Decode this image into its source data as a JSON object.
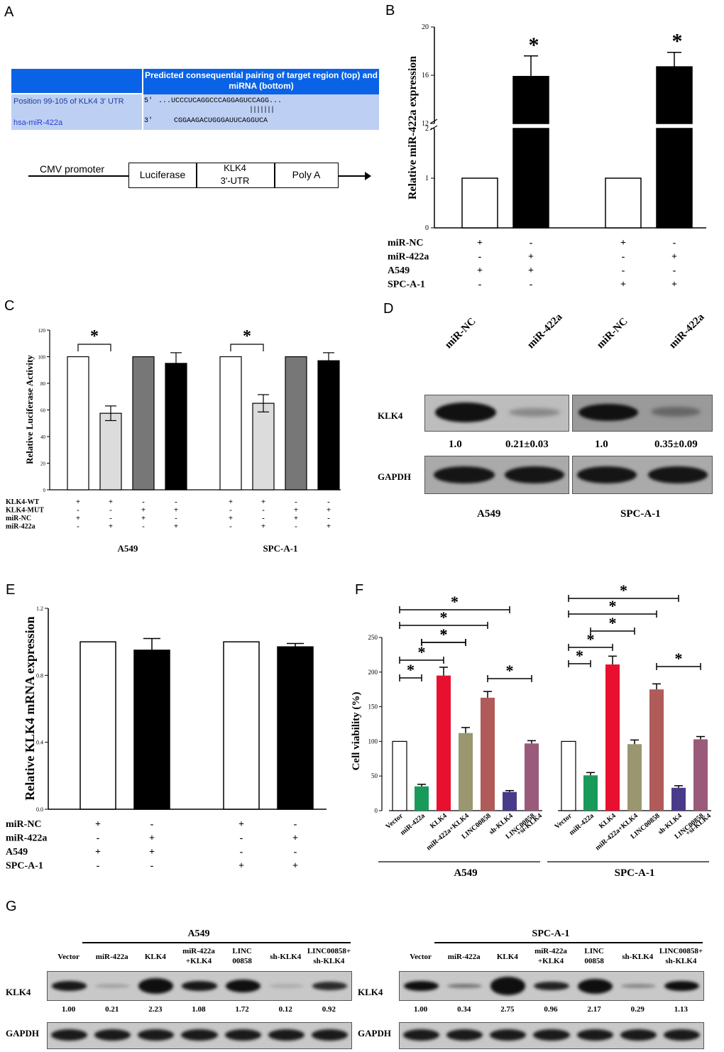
{
  "panels": {
    "A": "A",
    "B": "B",
    "C": "C",
    "D": "D",
    "E": "E",
    "F": "F",
    "G": "G"
  },
  "panelA": {
    "table_header": "Predicted consequential pairing of target region (top) and miRNA (bottom)",
    "row1_label": "Position 99-105 of KLK4 3' UTR",
    "row1_prime": "5'",
    "row1_seq": "...UCCCUCAGGCCCAGGAGUCCAGG...",
    "pairing": "|||||||",
    "row2_label": "hsa-miR-422a",
    "row2_prime": "3'",
    "row2_seq": "CGGAAGACUGGGAUUCAGGUCA",
    "construct": {
      "promoter": "CMV promoter",
      "luciferase": "Luciferase",
      "utr_line1": "KLK4",
      "utr_line2": "3'-UTR",
      "polya": "Poly A"
    }
  },
  "chart_data": [
    {
      "panel": "B",
      "type": "bar",
      "ylabel": "Relative miR-422a expression",
      "axis_break": true,
      "lower_ticks": [
        "0",
        "1",
        "2"
      ],
      "upper_ticks": [
        "12",
        "16",
        "20"
      ],
      "values": [
        1,
        15.9,
        1,
        16.7
      ],
      "errors": [
        0,
        1.7,
        0,
        1.2
      ],
      "colors": [
        "#ffffff",
        "#000000",
        "#ffffff",
        "#000000"
      ],
      "significance": [
        "",
        "*",
        "",
        "*"
      ],
      "rows": [
        {
          "label": "miR-NC",
          "marks": [
            "+",
            "-",
            "+",
            "-"
          ]
        },
        {
          "label": "miR-422a",
          "marks": [
            "-",
            "+",
            "-",
            "+"
          ]
        },
        {
          "label": "A549",
          "marks": [
            "+",
            "+",
            "-",
            "-"
          ]
        },
        {
          "label": "SPC-A-1",
          "marks": [
            "-",
            "-",
            "+",
            "+"
          ]
        }
      ]
    },
    {
      "panel": "C",
      "type": "bar",
      "ylabel": "Relative Luciferase Activity",
      "ylim": [
        0,
        120
      ],
      "ticks": [
        "0",
        "20",
        "40",
        "60",
        "80",
        "100",
        "120"
      ],
      "values": [
        100,
        57.5,
        100,
        95,
        100,
        65,
        100,
        97
      ],
      "errors": [
        0,
        5.5,
        0,
        8,
        0,
        6.5,
        0,
        6
      ],
      "colors": [
        "#ffffff",
        "#dcdcdc",
        "#777777",
        "#000000",
        "#ffffff",
        "#dcdcdc",
        "#777777",
        "#000000"
      ],
      "significance_label": "*",
      "rows": [
        {
          "label": "KLK4-WT",
          "marks": [
            "+",
            "+",
            "-",
            "-",
            "+",
            "+",
            "-",
            "-"
          ]
        },
        {
          "label": "KLK4-MUT",
          "marks": [
            "-",
            "-",
            "+",
            "+",
            "-",
            "-",
            "+",
            "+"
          ]
        },
        {
          "label": "miR-NC",
          "marks": [
            "+",
            "-",
            "+",
            "-",
            "+",
            "-",
            "+",
            "-"
          ]
        },
        {
          "label": "miR-422a",
          "marks": [
            "-",
            "+",
            "-",
            "+",
            "-",
            "+",
            "-",
            "+"
          ]
        }
      ],
      "groups": [
        "A549",
        "SPC-A-1"
      ]
    },
    {
      "panel": "E",
      "type": "bar",
      "ylabel": "Relative KLK4 mRNA expression",
      "ylim": [
        0,
        1.2
      ],
      "ticks": [
        "0.0",
        "0.4",
        "0.8",
        "1.2"
      ],
      "values": [
        1,
        0.95,
        1,
        0.97
      ],
      "errors": [
        0,
        0.07,
        0,
        0.02
      ],
      "colors": [
        "#ffffff",
        "#000000",
        "#ffffff",
        "#000000"
      ],
      "rows": [
        {
          "label": "miR-NC",
          "marks": [
            "+",
            "-",
            "+",
            "-"
          ]
        },
        {
          "label": "miR-422a",
          "marks": [
            "-",
            "+",
            "-",
            "+"
          ]
        },
        {
          "label": "A549",
          "marks": [
            "+",
            "+",
            "-",
            "-"
          ]
        },
        {
          "label": "SPC-A-1",
          "marks": [
            "-",
            "-",
            "+",
            "+"
          ]
        }
      ]
    },
    {
      "panel": "F",
      "type": "bar",
      "ylabel": "Cell viability (%)",
      "ylim": [
        0,
        250
      ],
      "ticks": [
        "0",
        "50",
        "100",
        "150",
        "200",
        "250"
      ],
      "categories": [
        "Vector",
        "miR-422a",
        "KLK4",
        "miR-422a+KLK4",
        "LINC00858",
        "sh-KLK4",
        "LINC00858 +si-KLK4"
      ],
      "category_lines": [
        [
          "Vector"
        ],
        [
          "miR-422a"
        ],
        [
          "KLK4"
        ],
        [
          "miR-422a+KLK4"
        ],
        [
          "LINC00858"
        ],
        [
          "sh-KLK4"
        ],
        [
          "LINC00858",
          "+si-KLK4"
        ]
      ],
      "colors": [
        "#ffffff",
        "#1a9a5a",
        "#e8102e",
        "#9a9670",
        "#b05a5a",
        "#4a3a8a",
        "#9a5a7a"
      ],
      "groups": [
        {
          "name": "A549",
          "values": [
            100,
            35,
            195,
            112,
            163,
            27,
            97
          ],
          "errors": [
            0,
            3,
            12,
            8,
            9,
            2,
            4
          ]
        },
        {
          "name": "SPC-A-1",
          "values": [
            100,
            51,
            211,
            96,
            175,
            33,
            103
          ],
          "errors": [
            0,
            4,
            12,
            6,
            8,
            3,
            4
          ]
        }
      ],
      "significance_label": "*"
    }
  ],
  "panelD": {
    "lanes": [
      "miR-NC",
      "miR-422a",
      "miR-NC",
      "miR-422a"
    ],
    "klk4": "KLK4",
    "gapdh": "GAPDH",
    "values": [
      "1.0",
      "0.21±0.03",
      "1.0",
      "0.35±0.09"
    ],
    "groups": [
      "A549",
      "SPC-A-1"
    ]
  },
  "panelG": {
    "groups": [
      {
        "name": "A549",
        "lanes": [
          [
            "Vector"
          ],
          [
            "miR-422a"
          ],
          [
            "KLK4"
          ],
          [
            "miR-422a",
            "+KLK4"
          ],
          [
            "LINC",
            "00858"
          ],
          [
            "sh-KLK4"
          ],
          [
            "LINC00858+",
            "sh-KLK4"
          ]
        ],
        "values": [
          "1.00",
          "0.21",
          "2.23",
          "1.08",
          "1.72",
          "0.12",
          "0.92"
        ]
      },
      {
        "name": "SPC-A-1",
        "lanes": [
          [
            "Vector"
          ],
          [
            "miR-422a"
          ],
          [
            "KLK4"
          ],
          [
            "miR-422a",
            "+KLK4"
          ],
          [
            "LINC",
            "00858"
          ],
          [
            "sh-KLK4"
          ],
          [
            "LINC00858+",
            "sh-KLK4"
          ]
        ],
        "values": [
          "1.00",
          "0.34",
          "2.75",
          "0.96",
          "2.17",
          "0.29",
          "1.13"
        ]
      }
    ],
    "klk4": "KLK4",
    "gapdh": "GAPDH"
  }
}
